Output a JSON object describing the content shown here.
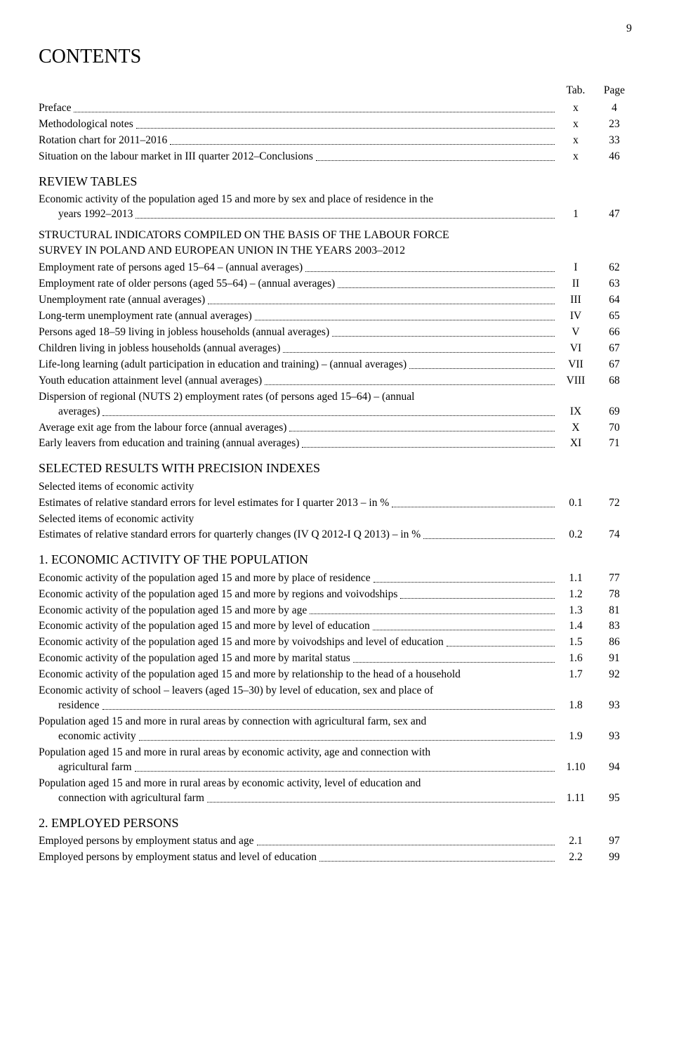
{
  "pageNumber": "9",
  "title": "CONTENTS",
  "headerTab": "Tab.",
  "headerPage": "Page",
  "rows": [
    {
      "label": "Preface ",
      "tab": "x",
      "page": "4",
      "dots": true
    },
    {
      "label": "Methodological notes ",
      "tab": "x",
      "page": "23",
      "dots": true
    },
    {
      "label": "Rotation chart for 2011–2016 ",
      "tab": "x",
      "page": "33",
      "dots": true
    },
    {
      "label": "Situation on the labour market in III quarter 2012–Conclusions ",
      "tab": "x",
      "page": "46",
      "dots": true
    }
  ],
  "section1": "REVIEW TABLES",
  "row1a": {
    "label1": "Economic activity of the population aged 15 and more by sex and place of residence in the",
    "label2": "years 1992–2013 ",
    "tab": "1",
    "page": "47"
  },
  "section2a": "STRUCTURAL INDICATORS COMPILED ON THE BASIS OF THE LABOUR FORCE",
  "section2b": "SURVEY IN POLAND AND EUROPEAN UNION IN THE YEARS 2003–2012",
  "rows2": [
    {
      "label": "Employment rate of persons aged 15–64 – (annual averages) ",
      "tab": "I",
      "page": "62",
      "dots": true
    },
    {
      "label": "Employment rate of older persons (aged 55–64) – (annual averages) ",
      "tab": "II",
      "page": "63",
      "dots": true
    },
    {
      "label": "Unemployment rate (annual averages) ",
      "tab": "III",
      "page": "64",
      "dots": true
    },
    {
      "label": "Long-term unemployment rate (annual averages) ",
      "tab": "IV",
      "page": "65",
      "dots": true
    },
    {
      "label": "Persons aged 18–59 living in jobless households (annual averages) ",
      "tab": "V",
      "page": "66",
      "dots": true
    },
    {
      "label": "Children living in jobless households (annual averages) ",
      "tab": "VI",
      "page": "67",
      "dots": true
    },
    {
      "label": "Life-long learning (adult participation in education and training) – (annual averages) ",
      "tab": "VII",
      "page": "67",
      "dots": true
    },
    {
      "label": "Youth education attainment level (annual averages) ",
      "tab": "VIII",
      "page": "68",
      "dots": true
    }
  ],
  "row2a": {
    "label1": "Dispersion of regional (NUTS 2) employment rates (of persons aged 15–64) – (annual",
    "label2": "averages) ",
    "tab": "IX",
    "page": "69"
  },
  "rows2b": [
    {
      "label": "Average exit age from the labour force (annual averages) ",
      "tab": "X",
      "page": "70",
      "dots": true
    },
    {
      "label": "Early leavers from education and training (annual averages) ",
      "tab": "XI",
      "page": "71",
      "dots": true
    }
  ],
  "section3": "SELECTED RESULTS WITH PRECISION INDEXES",
  "sub3a": "Selected items of economic activity",
  "row3a": {
    "label": "Estimates of relative standard errors for level estimates for I quarter 2013 – in % ",
    "tab": "0.1",
    "page": "72",
    "dots": true
  },
  "sub3b": "Selected items of economic activity",
  "row3b": {
    "label": "Estimates of relative standard errors for quarterly changes (IV Q 2012-I Q 2013) – in % ",
    "tab": "0.2",
    "page": "74",
    "dots": true
  },
  "section4": "1. ECONOMIC ACTIVITY OF THE POPULATION",
  "rows4": [
    {
      "label": "Economic activity of the population aged 15 and more by place of residence ",
      "tab": "1.1",
      "page": "77",
      "dots": true
    },
    {
      "label": "Economic activity of the population aged 15 and more by regions and voivodships ",
      "tab": "1.2",
      "page": "78",
      "dots": true
    },
    {
      "label": "Economic activity of the population aged 15 and more by age ",
      "tab": "1.3",
      "page": "81",
      "dots": true
    },
    {
      "label": "Economic activity of the population aged 15 and more by level of education ",
      "tab": "1.4",
      "page": "83",
      "dots": true
    },
    {
      "label": "Economic activity of the population aged 15 and more by voivodships and level of education ",
      "tab": "1.5",
      "page": "86",
      "dots": true
    },
    {
      "label": "Economic activity of the population aged 15 and more by marital status ",
      "tab": "1.6",
      "page": "91",
      "dots": true
    },
    {
      "label": "Economic activity of the population aged 15 and more by relationship to the head of a household",
      "tab": "1.7",
      "page": "92",
      "dots": false
    }
  ],
  "row4a": {
    "label1": "Economic activity of school – leavers (aged 15–30) by level of education, sex and place of",
    "label2": "residence ",
    "tab": "1.8",
    "page": "93"
  },
  "row4b": {
    "label1": "Population aged 15 and more in rural areas by connection with agricultural farm, sex and",
    "label2": "economic activity ",
    "tab": "1.9",
    "page": "93"
  },
  "row4c": {
    "label1": "Population aged 15 and more in rural areas by economic activity, age and connection with",
    "label2": "agricultural farm ",
    "tab": "1.10",
    "page": "94"
  },
  "row4d": {
    "label1": "Population aged 15 and more in rural areas by economic activity, level of education and",
    "label2": "connection with agricultural farm ",
    "tab": "1.11",
    "page": "95"
  },
  "section5": "2. EMPLOYED PERSONS",
  "rows5": [
    {
      "label": "Employed persons by employment status and age ",
      "tab": "2.1",
      "page": "97",
      "dots": true
    },
    {
      "label": "Employed persons by employment status and level of education ",
      "tab": "2.2",
      "page": "99",
      "dots": true
    }
  ]
}
